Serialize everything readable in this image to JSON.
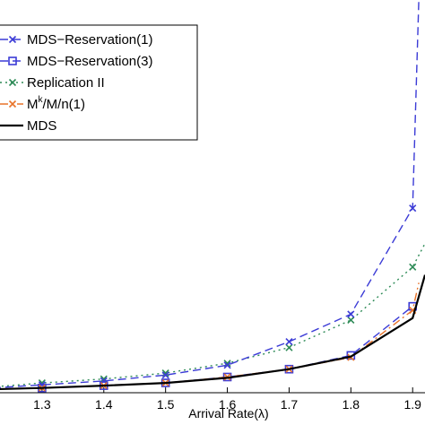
{
  "chart_data": {
    "type": "line",
    "xlabel": "Arrival Rate(λ)",
    "ylabel": "",
    "title": "",
    "xlim": [
      1.2,
      1.92
    ],
    "ylim": [
      0,
      1
    ],
    "x_ticks": [
      1.3,
      1.4,
      1.5,
      1.6,
      1.7,
      1.8,
      1.9
    ],
    "x_tick_labels": [
      "1.3",
      "1.4",
      "1.5",
      "1.6",
      "1.7",
      "1.8",
      "1.9"
    ],
    "legend_position": "top-left",
    "series": [
      {
        "name": "MDS−Reservation(1)",
        "color": "#3b3bd6",
        "style": "dashed",
        "marker": "x",
        "x": [
          1.2,
          1.3,
          1.4,
          1.5,
          1.6,
          1.7,
          1.8,
          1.9,
          1.91
        ],
        "y": [
          0.01,
          0.02,
          0.03,
          0.045,
          0.07,
          0.13,
          0.2,
          0.47,
          1.0
        ]
      },
      {
        "name": "MDS−Reservation(3)",
        "color": "#3b3bd6",
        "style": "dashed",
        "marker": "square",
        "x": [
          1.2,
          1.3,
          1.4,
          1.5,
          1.6,
          1.7,
          1.8,
          1.9
        ],
        "y": [
          0.008,
          0.012,
          0.018,
          0.025,
          0.04,
          0.06,
          0.095,
          0.22
        ]
      },
      {
        "name": "Replication II",
        "color": "#2e8b57",
        "style": "dotted",
        "marker": "x",
        "x": [
          1.2,
          1.3,
          1.4,
          1.5,
          1.6,
          1.7,
          1.8,
          1.9,
          1.92
        ],
        "y": [
          0.012,
          0.025,
          0.035,
          0.05,
          0.075,
          0.115,
          0.185,
          0.32,
          0.38
        ]
      },
      {
        "name": "M^k/M/n(1)",
        "color": "#e8732a",
        "style": "dashdot",
        "marker": "x",
        "x": [
          1.2,
          1.3,
          1.4,
          1.5,
          1.6,
          1.7,
          1.8,
          1.9,
          1.91
        ],
        "y": [
          0.008,
          0.012,
          0.018,
          0.025,
          0.04,
          0.06,
          0.09,
          0.21,
          0.28
        ]
      },
      {
        "name": "MDS",
        "color": "#000000",
        "style": "solid",
        "marker": "none",
        "x": [
          1.2,
          1.3,
          1.4,
          1.5,
          1.6,
          1.7,
          1.8,
          1.9,
          1.92
        ],
        "y": [
          0.008,
          0.012,
          0.018,
          0.025,
          0.038,
          0.06,
          0.092,
          0.19,
          0.3
        ]
      }
    ],
    "legend": {
      "entries": [
        {
          "label_main": "MDS−Reservation(1)",
          "label_sup": "",
          "label_rest": ""
        },
        {
          "label_main": "MDS−Reservation(3)",
          "label_sup": "",
          "label_rest": ""
        },
        {
          "label_main": "Replication II",
          "label_sup": "",
          "label_rest": ""
        },
        {
          "label_main": "M",
          "label_sup": "k",
          "label_rest": "/M/n(1)"
        },
        {
          "label_main": "MDS",
          "label_sup": "",
          "label_rest": ""
        }
      ]
    }
  }
}
